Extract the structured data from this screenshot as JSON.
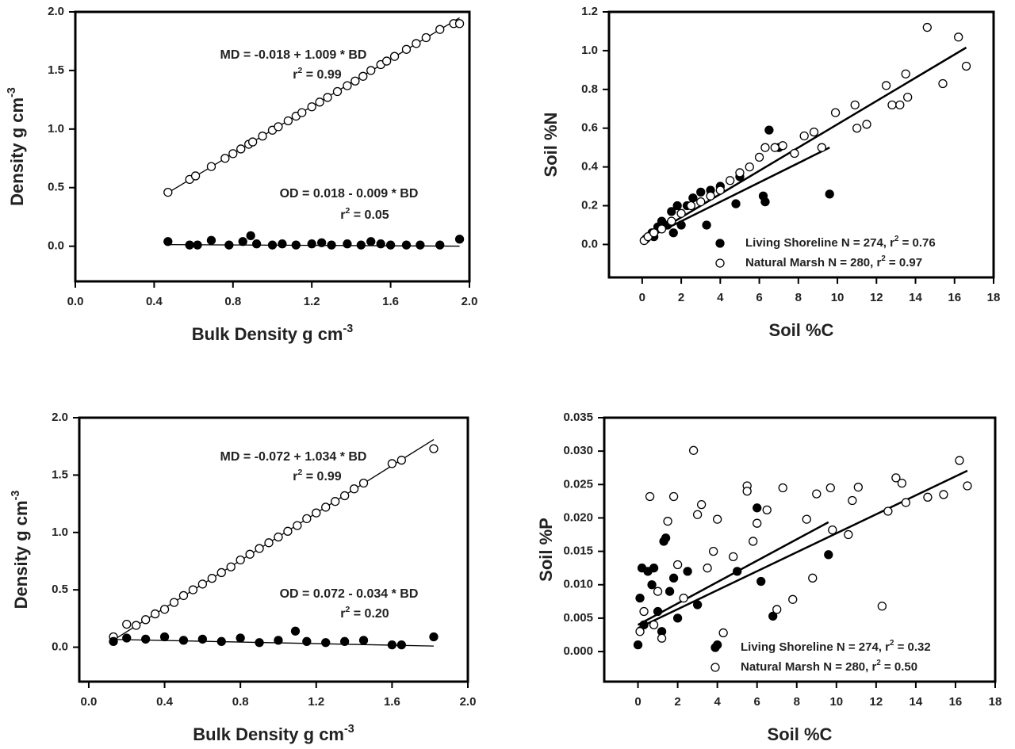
{
  "chart_data": [
    {
      "type": "scatter",
      "annotations": [
        {
          "text": "MD = -0.018 + 1.009 * BD"
        },
        {
          "text": "r",
          "sup": "2",
          "after": " = 0.99"
        },
        {
          "text": "OD = 0.018 -  0.009 * BD"
        },
        {
          "text": "r",
          "sup": "2",
          "after": " =  0.05"
        }
      ],
      "xlabel": {
        "text": "Bulk Density g cm",
        "sup": "-3"
      },
      "ylabel": {
        "text": "Density g cm",
        "sup": "-3"
      },
      "xlim": [
        0,
        2.0
      ],
      "ylim": [
        -0.3,
        2.0
      ],
      "xticks": [
        {
          "value": 0,
          "label": "0.0"
        },
        0.4,
        0.8,
        1.2,
        1.6,
        {
          "value": 2,
          "label": "2.0"
        }
      ],
      "yticks": [
        {
          "value": 0,
          "label": "0.0"
        },
        0.5,
        {
          "value": 1,
          "label": "1.0"
        },
        1.5,
        {
          "value": 2,
          "label": "2.0"
        }
      ],
      "series": [
        {
          "marker": "open",
          "x": [
            0.47,
            0.58,
            0.61,
            0.69,
            0.76,
            0.8,
            0.84,
            0.88,
            0.9,
            0.95,
            1.0,
            1.03,
            1.08,
            1.12,
            1.15,
            1.2,
            1.24,
            1.28,
            1.33,
            1.38,
            1.42,
            1.46,
            1.5,
            1.55,
            1.58,
            1.62,
            1.68,
            1.73,
            1.78,
            1.85,
            1.92,
            1.95
          ],
          "values": [
            0.46,
            0.57,
            0.6,
            0.68,
            0.75,
            0.79,
            0.83,
            0.87,
            0.89,
            0.94,
            0.99,
            1.02,
            1.07,
            1.11,
            1.14,
            1.19,
            1.23,
            1.27,
            1.32,
            1.37,
            1.41,
            1.45,
            1.5,
            1.55,
            1.58,
            1.62,
            1.68,
            1.73,
            1.78,
            1.85,
            1.9,
            1.9
          ],
          "fit": {
            "intercept": -0.018,
            "slope": 1.009,
            "xrange": [
              0.47,
              1.95
            ]
          }
        },
        {
          "marker": "filled",
          "x": [
            0.47,
            0.58,
            0.62,
            0.69,
            0.78,
            0.85,
            0.89,
            0.92,
            1.0,
            1.05,
            1.12,
            1.2,
            1.25,
            1.3,
            1.38,
            1.45,
            1.5,
            1.55,
            1.6,
            1.68,
            1.75,
            1.85,
            1.95
          ],
          "values": [
            0.04,
            0.01,
            0.01,
            0.05,
            0.01,
            0.04,
            0.09,
            0.02,
            0.01,
            0.02,
            0.01,
            0.02,
            0.03,
            0.01,
            0.02,
            0.01,
            0.04,
            0.02,
            0.01,
            0.01,
            0.01,
            0.01,
            0.06
          ],
          "fit": {
            "intercept": 0.018,
            "slope": -0.009,
            "xrange": [
              0.47,
              1.95
            ]
          }
        }
      ]
    },
    {
      "type": "scatter",
      "legend": "lower right",
      "xlabel": {
        "text": "Soil %C"
      },
      "ylabel": {
        "text": "Soil %N"
      },
      "xlim": [
        -1.7,
        18
      ],
      "ylim": [
        -0.17,
        1.2
      ],
      "xticks": [
        0,
        2,
        4,
        6,
        8,
        10,
        12,
        14,
        16,
        18
      ],
      "yticks": [
        {
          "value": 0,
          "label": "0.0"
        },
        0.2,
        0.4,
        0.6,
        0.8,
        {
          "value": 1,
          "label": "1.0"
        },
        1.2
      ],
      "series": [
        {
          "name": {
            "text": "Living Shoreline N = 274, r",
            "sup": "2",
            "after": " = 0.76"
          },
          "marker": "filled",
          "x": [
            0.2,
            0.5,
            0.8,
            1.0,
            1.3,
            1.5,
            1.8,
            2.0,
            2.3,
            2.6,
            3.0,
            3.3,
            3.5,
            4.0,
            4.8,
            5.0,
            6.2,
            6.3,
            6.5,
            7.0,
            9.6,
            1.6,
            0.6
          ],
          "values": [
            0.03,
            0.06,
            0.09,
            0.12,
            0.1,
            0.17,
            0.2,
            0.1,
            0.2,
            0.24,
            0.27,
            0.1,
            0.28,
            0.3,
            0.21,
            0.35,
            0.25,
            0.22,
            0.59,
            0.5,
            0.26,
            0.06,
            0.04
          ],
          "fit": {
            "intercept": 0.02,
            "slope": 0.05,
            "xrange": [
              0,
              9.6
            ]
          }
        },
        {
          "name": {
            "text": "Natural Marsh N = 280, r",
            "sup": "2",
            "after": " = 0.97"
          },
          "marker": "open",
          "x": [
            0.1,
            0.3,
            0.6,
            1,
            1.5,
            2,
            2.5,
            3,
            3.5,
            4,
            4.5,
            5,
            5.5,
            6,
            6.3,
            6.8,
            7.2,
            7.8,
            8.3,
            8.8,
            9.2,
            9.9,
            10.9,
            11,
            11.5,
            12.5,
            12.8,
            13.2,
            13.5,
            13.6,
            14.6,
            15.4,
            16.2,
            16.6
          ],
          "values": [
            0.02,
            0.04,
            0.06,
            0.08,
            0.12,
            0.16,
            0.2,
            0.22,
            0.25,
            0.28,
            0.33,
            0.37,
            0.4,
            0.45,
            0.5,
            0.5,
            0.51,
            0.47,
            0.56,
            0.58,
            0.5,
            0.68,
            0.72,
            0.6,
            0.62,
            0.82,
            0.72,
            0.72,
            0.88,
            0.76,
            1.12,
            0.83,
            1.07,
            0.92
          ],
          "fit": {
            "intercept": 0.02,
            "slope": 0.06,
            "xrange": [
              0,
              16.6
            ]
          }
        }
      ]
    },
    {
      "type": "scatter",
      "annotations": [
        {
          "text": "MD = -0.072 + 1.034 * BD"
        },
        {
          "text": "r",
          "sup": "2",
          "after": " = 0.99"
        },
        {
          "text": "OD = 0.072 - 0.034 * BD"
        },
        {
          "text": "r",
          "sup": "2",
          "after": " =  0.20"
        }
      ],
      "xlabel": {
        "text": "Bulk Density g cm",
        "sup": "-3"
      },
      "ylabel": {
        "text": "Density g cm",
        "sup": "-3"
      },
      "xlim": [
        -0.05,
        2.0
      ],
      "ylim": [
        -0.3,
        2.0
      ],
      "xticks": [
        {
          "value": 0,
          "label": "0.0"
        },
        0.4,
        0.8,
        1.2,
        1.6,
        {
          "value": 2,
          "label": "2.0"
        }
      ],
      "yticks": [
        {
          "value": 0,
          "label": "0.0"
        },
        0.5,
        {
          "value": 1,
          "label": "1.0"
        },
        1.5,
        {
          "value": 2,
          "label": "2.0"
        }
      ],
      "series": [
        {
          "marker": "open",
          "x": [
            0.13,
            0.2,
            0.25,
            0.3,
            0.35,
            0.4,
            0.45,
            0.5,
            0.55,
            0.6,
            0.65,
            0.7,
            0.75,
            0.8,
            0.85,
            0.9,
            0.95,
            1.0,
            1.05,
            1.1,
            1.15,
            1.2,
            1.25,
            1.3,
            1.35,
            1.4,
            1.45,
            1.6,
            1.65,
            1.82
          ],
          "values": [
            0.09,
            0.2,
            0.19,
            0.24,
            0.29,
            0.33,
            0.39,
            0.45,
            0.5,
            0.55,
            0.6,
            0.65,
            0.7,
            0.76,
            0.81,
            0.86,
            0.91,
            0.96,
            1.01,
            1.06,
            1.12,
            1.17,
            1.22,
            1.27,
            1.32,
            1.38,
            1.43,
            1.6,
            1.63,
            1.73
          ],
          "fit": {
            "intercept": -0.072,
            "slope": 1.034,
            "xrange": [
              0.13,
              1.82
            ]
          }
        },
        {
          "marker": "filled",
          "x": [
            0.13,
            0.2,
            0.3,
            0.4,
            0.5,
            0.6,
            0.7,
            0.8,
            0.9,
            1.0,
            1.09,
            1.15,
            1.25,
            1.35,
            1.45,
            1.6,
            1.65,
            1.82
          ],
          "values": [
            0.05,
            0.08,
            0.07,
            0.09,
            0.06,
            0.07,
            0.05,
            0.08,
            0.04,
            0.06,
            0.14,
            0.05,
            0.04,
            0.05,
            0.06,
            0.02,
            0.02,
            0.09
          ],
          "fit": {
            "intercept": 0.072,
            "slope": -0.034,
            "xrange": [
              0.13,
              1.82
            ]
          }
        }
      ]
    },
    {
      "type": "scatter",
      "legend": "lower right",
      "xlabel": {
        "text": "Soil %C"
      },
      "ylabel": {
        "text": "Soil %P"
      },
      "xlim": [
        -1.7,
        18
      ],
      "ylim": [
        -0.0045,
        0.035
      ],
      "xticks": [
        0,
        2,
        4,
        6,
        8,
        10,
        12,
        14,
        16,
        18
      ],
      "yticks": [
        {
          "value": 0,
          "label": "0.000"
        },
        {
          "value": 0.005,
          "label": "0.005"
        },
        {
          "value": 0.01,
          "label": "0.010"
        },
        0.015,
        {
          "value": 0.02,
          "label": "0.020"
        },
        0.025,
        {
          "value": 0.03,
          "label": "0.030"
        },
        0.035
      ],
      "series": [
        {
          "name": {
            "text": "Living Shoreline N = 274, r",
            "sup": "2",
            "after": " = 0.32"
          },
          "marker": "filled",
          "x": [
            0,
            0.1,
            0.3,
            0.5,
            0.7,
            1,
            1.2,
            1.4,
            1.3,
            1.6,
            2,
            2.5,
            3,
            4,
            5,
            6,
            6.2,
            6.8,
            9.6,
            0.2,
            0.8,
            1.8
          ],
          "values": [
            0.001,
            0.008,
            0.004,
            0.012,
            0.01,
            0.006,
            0.003,
            0.017,
            0.0165,
            0.009,
            0.005,
            0.012,
            0.007,
            0.001,
            0.012,
            0.0215,
            0.0105,
            0.0053,
            0.0145,
            0.0125,
            0.0125,
            0.011
          ],
          "fit": {
            "intercept": 0.004,
            "slope": 0.0016,
            "xrange": [
              0,
              9.6
            ]
          }
        },
        {
          "name": {
            "text": "Natural Marsh N = 280, r",
            "sup": "2",
            "after": " = 0.50"
          },
          "marker": "open",
          "x": [
            0.1,
            0.3,
            0.6,
            0.8,
            1,
            1.2,
            1.5,
            1.8,
            2,
            2.3,
            2.8,
            3,
            3.2,
            3.5,
            3.8,
            4,
            4.3,
            4.8,
            5.5,
            5.5,
            5.8,
            6,
            6.5,
            7,
            7.3,
            7.8,
            8.5,
            8.8,
            9,
            9.7,
            9.8,
            10.6,
            10.8,
            11.1,
            12.3,
            12.6,
            13,
            13.3,
            13.5,
            14.6,
            15.4,
            16.2,
            16.6
          ],
          "values": [
            0.003,
            0.006,
            0.0232,
            0.004,
            0.009,
            0.002,
            0.0195,
            0.0232,
            0.013,
            0.008,
            0.0301,
            0.0205,
            0.022,
            0.0125,
            0.015,
            0.0198,
            0.0028,
            0.0142,
            0.0248,
            0.024,
            0.0165,
            0.0192,
            0.0212,
            0.0063,
            0.0245,
            0.0078,
            0.0198,
            0.011,
            0.0236,
            0.0245,
            0.0182,
            0.0175,
            0.0226,
            0.0246,
            0.0068,
            0.021,
            0.026,
            0.0252,
            0.0223,
            0.0231,
            0.0235,
            0.0286,
            0.0248
          ],
          "fit": {
            "intercept": 0.0035,
            "slope": 0.00142,
            "xrange": [
              0,
              16.6
            ]
          }
        }
      ]
    }
  ]
}
